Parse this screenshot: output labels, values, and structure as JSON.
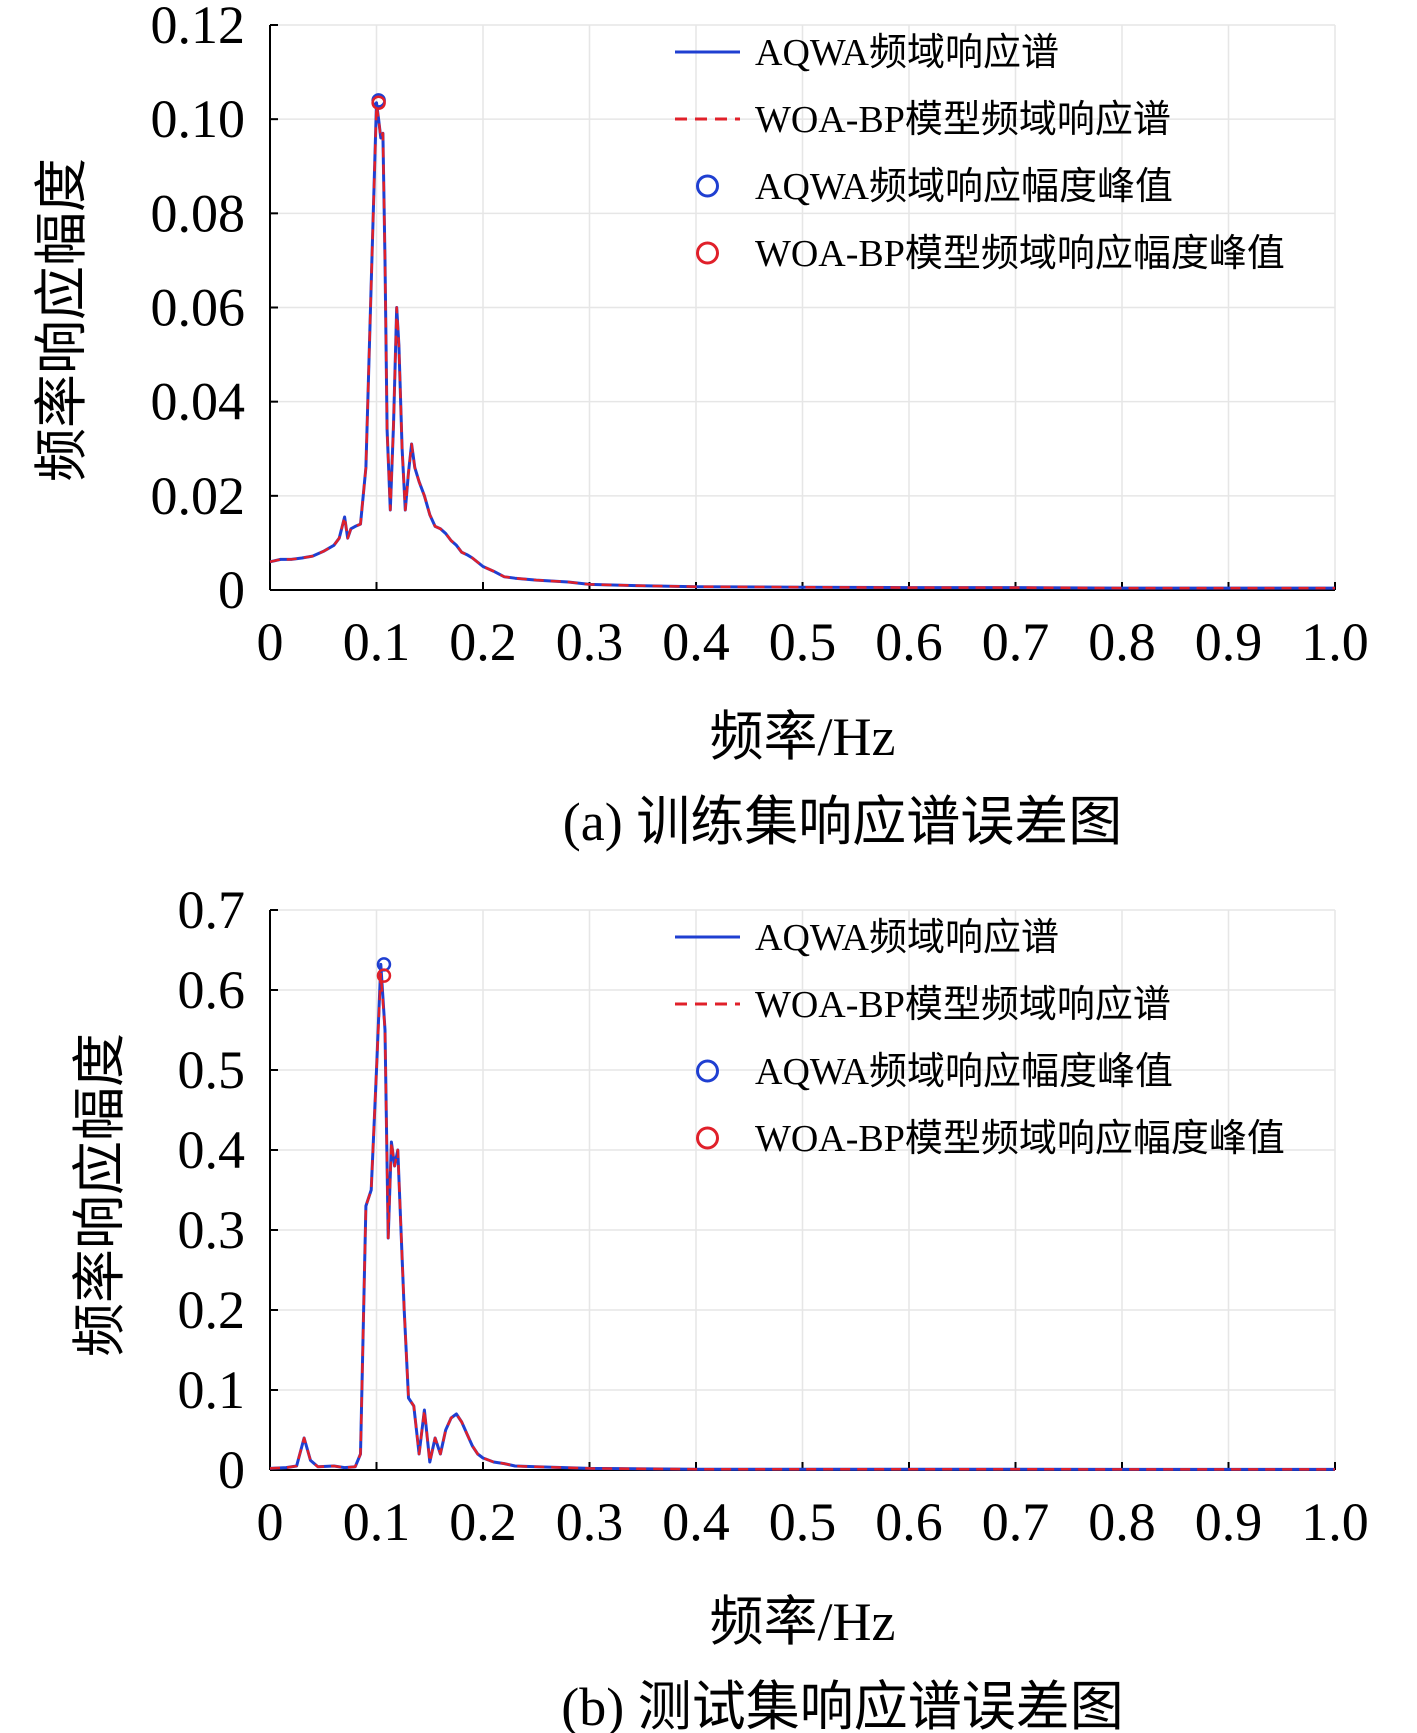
{
  "chart_data": [
    {
      "type": "line",
      "caption": "(a) 训练集响应谱误差图",
      "xlabel": "频率/Hz",
      "ylabel": "频率响应幅度",
      "xlim": [
        0,
        1.0
      ],
      "ylim": [
        0,
        0.12
      ],
      "xticks": [
        0,
        0.1,
        0.2,
        0.3,
        0.4,
        0.5,
        0.6,
        0.7,
        0.8,
        0.9,
        1.0
      ],
      "xtick_labels": [
        "0",
        "0.1",
        "0.2",
        "0.3",
        "0.4",
        "0.5",
        "0.6",
        "0.7",
        "0.8",
        "0.9",
        "1.0"
      ],
      "yticks": [
        0,
        0.02,
        0.04,
        0.06,
        0.08,
        0.1,
        0.12
      ],
      "ytick_labels": [
        "0",
        "0.02",
        "0.04",
        "0.06",
        "0.08",
        "0.10",
        "0.12"
      ],
      "grid": true,
      "legend_position": "top-right",
      "series": [
        {
          "name": "AQWA频域响应谱",
          "kind": "line",
          "style": "solid",
          "color": "#1f3fd1",
          "x": [
            0,
            0.01,
            0.02,
            0.03,
            0.04,
            0.05,
            0.06,
            0.065,
            0.07,
            0.073,
            0.076,
            0.08,
            0.085,
            0.09,
            0.095,
            0.1,
            0.102,
            0.104,
            0.106,
            0.108,
            0.11,
            0.113,
            0.116,
            0.119,
            0.121,
            0.124,
            0.127,
            0.13,
            0.133,
            0.136,
            0.14,
            0.145,
            0.15,
            0.155,
            0.16,
            0.165,
            0.17,
            0.175,
            0.18,
            0.185,
            0.19,
            0.2,
            0.21,
            0.22,
            0.23,
            0.25,
            0.28,
            0.3,
            0.35,
            0.4,
            0.5,
            0.6,
            0.7,
            0.8,
            0.9,
            1.0
          ],
          "y": [
            0.006,
            0.0065,
            0.0065,
            0.0068,
            0.0072,
            0.0082,
            0.0095,
            0.011,
            0.0155,
            0.011,
            0.013,
            0.0135,
            0.014,
            0.026,
            0.065,
            0.1035,
            0.1,
            0.096,
            0.097,
            0.07,
            0.034,
            0.017,
            0.035,
            0.06,
            0.052,
            0.03,
            0.017,
            0.025,
            0.031,
            0.026,
            0.023,
            0.02,
            0.016,
            0.0135,
            0.013,
            0.012,
            0.0105,
            0.0095,
            0.008,
            0.0075,
            0.0068,
            0.005,
            0.004,
            0.0028,
            0.0025,
            0.0021,
            0.0017,
            0.0012,
            0.0009,
            0.0007,
            0.0006,
            0.0005,
            0.0005,
            0.0004,
            0.0004,
            0.0004
          ]
        },
        {
          "name": "WOA-BP模型频域响应谱",
          "kind": "line",
          "style": "dashed",
          "color": "#e0202a",
          "x": [
            0,
            0.01,
            0.02,
            0.03,
            0.04,
            0.05,
            0.06,
            0.065,
            0.07,
            0.073,
            0.076,
            0.08,
            0.085,
            0.09,
            0.095,
            0.1,
            0.102,
            0.104,
            0.106,
            0.108,
            0.11,
            0.113,
            0.116,
            0.119,
            0.121,
            0.124,
            0.127,
            0.13,
            0.133,
            0.136,
            0.14,
            0.145,
            0.15,
            0.155,
            0.16,
            0.165,
            0.17,
            0.175,
            0.18,
            0.185,
            0.19,
            0.2,
            0.21,
            0.22,
            0.23,
            0.25,
            0.28,
            0.3,
            0.35,
            0.4,
            0.5,
            0.6,
            0.7,
            0.8,
            0.9,
            1.0
          ],
          "y": [
            0.006,
            0.0065,
            0.0065,
            0.0068,
            0.0072,
            0.0082,
            0.0095,
            0.011,
            0.0155,
            0.011,
            0.013,
            0.0135,
            0.014,
            0.026,
            0.065,
            0.103,
            0.1,
            0.096,
            0.097,
            0.07,
            0.034,
            0.017,
            0.035,
            0.06,
            0.052,
            0.03,
            0.017,
            0.025,
            0.031,
            0.026,
            0.023,
            0.02,
            0.016,
            0.0135,
            0.013,
            0.012,
            0.0105,
            0.0095,
            0.008,
            0.0075,
            0.0068,
            0.005,
            0.004,
            0.0028,
            0.0025,
            0.0021,
            0.0017,
            0.0012,
            0.0009,
            0.0007,
            0.0006,
            0.0005,
            0.0005,
            0.0004,
            0.0004,
            0.0004
          ]
        },
        {
          "name": "AQWA频域响应幅度峰值",
          "kind": "marker",
          "color": "#1f3fd1",
          "x": [
            0.102
          ],
          "y": [
            0.104
          ]
        },
        {
          "name": "WOA-BP模型频域响应幅度峰值",
          "kind": "marker",
          "color": "#e0202a",
          "x": [
            0.102
          ],
          "y": [
            0.1035
          ]
        }
      ]
    },
    {
      "type": "line",
      "caption": "(b) 测试集响应谱误差图",
      "xlabel": "频率/Hz",
      "ylabel": "频率响应幅度",
      "xlim": [
        0,
        1.0
      ],
      "ylim": [
        0,
        0.7
      ],
      "xticks": [
        0,
        0.1,
        0.2,
        0.3,
        0.4,
        0.5,
        0.6,
        0.7,
        0.8,
        0.9,
        1.0
      ],
      "xtick_labels": [
        "0",
        "0.1",
        "0.2",
        "0.3",
        "0.4",
        "0.5",
        "0.6",
        "0.7",
        "0.8",
        "0.9",
        "1.0"
      ],
      "yticks": [
        0,
        0.1,
        0.2,
        0.3,
        0.4,
        0.5,
        0.6,
        0.7
      ],
      "ytick_labels": [
        "0",
        "0.1",
        "0.2",
        "0.3",
        "0.4",
        "0.5",
        "0.6",
        "0.7"
      ],
      "grid": true,
      "legend_position": "top-right",
      "series": [
        {
          "name": "AQWA频域响应谱",
          "kind": "line",
          "style": "solid",
          "color": "#1f3fd1",
          "x": [
            0,
            0.015,
            0.025,
            0.032,
            0.038,
            0.045,
            0.06,
            0.07,
            0.08,
            0.085,
            0.09,
            0.095,
            0.1,
            0.104,
            0.108,
            0.111,
            0.114,
            0.117,
            0.12,
            0.123,
            0.126,
            0.13,
            0.135,
            0.14,
            0.145,
            0.15,
            0.155,
            0.16,
            0.165,
            0.17,
            0.175,
            0.18,
            0.185,
            0.19,
            0.195,
            0.2,
            0.21,
            0.22,
            0.23,
            0.25,
            0.3,
            0.4,
            0.5,
            0.6,
            0.7,
            0.8,
            0.9,
            1.0
          ],
          "y": [
            0.002,
            0.003,
            0.005,
            0.04,
            0.012,
            0.004,
            0.005,
            0.003,
            0.004,
            0.02,
            0.33,
            0.35,
            0.5,
            0.632,
            0.55,
            0.29,
            0.41,
            0.38,
            0.4,
            0.3,
            0.2,
            0.09,
            0.08,
            0.02,
            0.075,
            0.01,
            0.04,
            0.02,
            0.05,
            0.065,
            0.07,
            0.06,
            0.045,
            0.03,
            0.02,
            0.015,
            0.01,
            0.008,
            0.005,
            0.004,
            0.002,
            0.001,
            0.001,
            0.001,
            0.001,
            0.0008,
            0.0008,
            0.0008
          ]
        },
        {
          "name": "WOA-BP模型频域响应谱",
          "kind": "line",
          "style": "dashed",
          "color": "#e0202a",
          "x": [
            0,
            0.015,
            0.025,
            0.032,
            0.038,
            0.045,
            0.06,
            0.07,
            0.08,
            0.085,
            0.09,
            0.095,
            0.1,
            0.104,
            0.108,
            0.111,
            0.114,
            0.117,
            0.12,
            0.123,
            0.126,
            0.13,
            0.135,
            0.14,
            0.145,
            0.15,
            0.155,
            0.16,
            0.165,
            0.17,
            0.175,
            0.18,
            0.185,
            0.19,
            0.195,
            0.2,
            0.21,
            0.22,
            0.23,
            0.25,
            0.3,
            0.4,
            0.5,
            0.6,
            0.7,
            0.8,
            0.9,
            1.0
          ],
          "y": [
            0.002,
            0.003,
            0.005,
            0.04,
            0.012,
            0.004,
            0.005,
            0.003,
            0.004,
            0.02,
            0.33,
            0.35,
            0.5,
            0.62,
            0.55,
            0.29,
            0.41,
            0.38,
            0.4,
            0.3,
            0.2,
            0.09,
            0.08,
            0.02,
            0.075,
            0.01,
            0.04,
            0.02,
            0.05,
            0.065,
            0.07,
            0.06,
            0.045,
            0.03,
            0.02,
            0.015,
            0.01,
            0.008,
            0.005,
            0.004,
            0.002,
            0.001,
            0.001,
            0.001,
            0.001,
            0.0008,
            0.0008,
            0.0008
          ]
        },
        {
          "name": "AQWA频域响应幅度峰值",
          "kind": "marker",
          "color": "#1f3fd1",
          "x": [
            0.107
          ],
          "y": [
            0.632
          ]
        },
        {
          "name": "WOA-BP模型频域响应幅度峰值",
          "kind": "marker",
          "color": "#e0202a",
          "x": [
            0.107
          ],
          "y": [
            0.618
          ]
        }
      ]
    }
  ]
}
